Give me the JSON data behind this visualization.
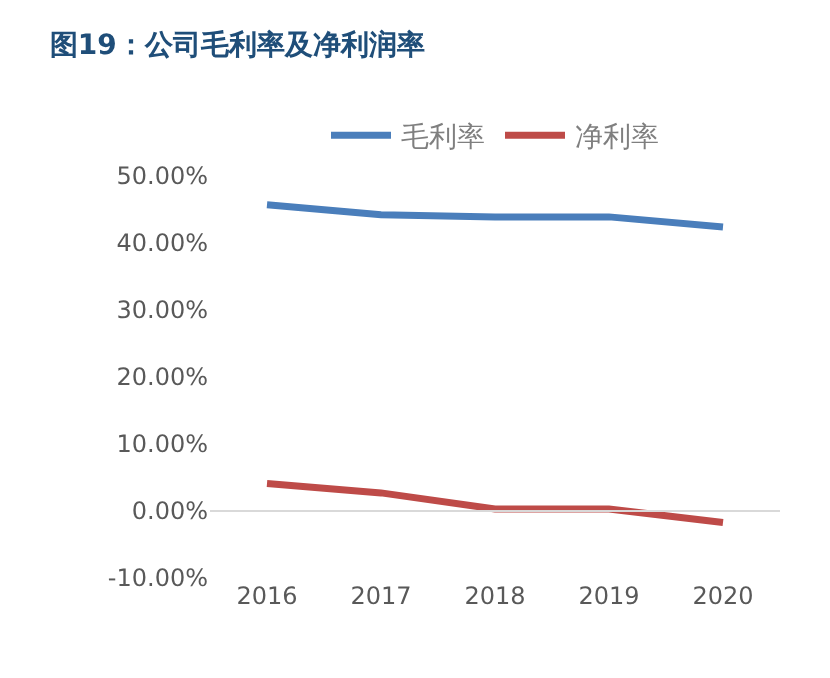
{
  "chart_data": {
    "type": "line",
    "title": "图19：公司毛利率及净利润率",
    "categories": [
      "2016",
      "2017",
      "2018",
      "2019",
      "2020"
    ],
    "series": [
      {
        "name": "毛利率",
        "color": "#4a7ebb",
        "values": [
          45.7,
          44.2,
          43.9,
          43.9,
          42.4
        ]
      },
      {
        "name": "净利率",
        "color": "#be4b48",
        "values": [
          4.1,
          2.7,
          0.3,
          0.3,
          -1.7
        ]
      }
    ],
    "ylim": [
      -10,
      50
    ],
    "yticks": [
      {
        "value": -10,
        "label": "-10.00%"
      },
      {
        "value": 0,
        "label": "0.00%"
      },
      {
        "value": 10,
        "label": "10.00%"
      },
      {
        "value": 20,
        "label": "20.00%"
      },
      {
        "value": 30,
        "label": "30.00%"
      },
      {
        "value": 40,
        "label": "40.00%"
      },
      {
        "value": 50,
        "label": "50.00%"
      }
    ],
    "ref_lines": [
      {
        "axis": "y",
        "value": 0,
        "color": "#d9d9d9"
      }
    ],
    "grid": false,
    "legend": "top",
    "marker": "none",
    "line_style": "solid"
  }
}
